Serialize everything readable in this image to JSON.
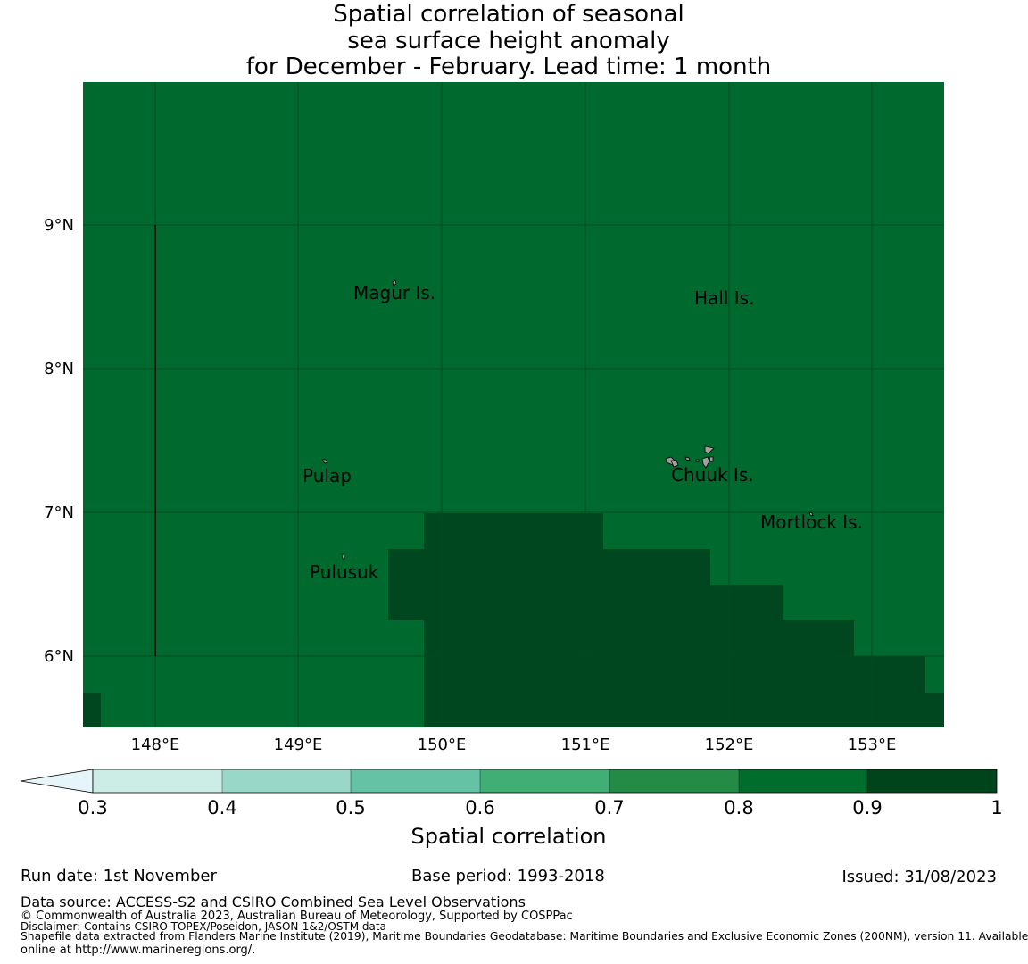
{
  "title": {
    "line1": "Spatial correlation of seasonal",
    "line2": "sea surface height anomaly",
    "line3": "for December - February. Lead time: 1 month"
  },
  "map": {
    "colors": {
      "corr_0_8_0_9": "#006a2e",
      "corr_0_9_1": "#00461f",
      "gridline": "#004a20",
      "island_fill": "#a0a0a0"
    },
    "lat_labels": [
      "9°N",
      "8°N",
      "7°N",
      "6°N"
    ],
    "lon_labels": [
      "148°E",
      "149°E",
      "150°E",
      "151°E",
      "152°E",
      "153°E"
    ],
    "places": [
      {
        "name": "Magur Is."
      },
      {
        "name": "Hall Is."
      },
      {
        "name": "Pulap"
      },
      {
        "name": "Chuuk Is."
      },
      {
        "name": "Mortlock Is."
      },
      {
        "name": "Pulusuk"
      }
    ]
  },
  "colorbar": {
    "label": "Spatial correlation",
    "ticks": [
      "0.3",
      "0.4",
      "0.5",
      "0.6",
      "0.7",
      "0.8",
      "0.9",
      "1"
    ],
    "extend_color": "#e5f5f9",
    "colors": [
      "#ccece6",
      "#99d8c9",
      "#66c2a4",
      "#41ae76",
      "#238b45",
      "#006d2c",
      "#00441b"
    ]
  },
  "footer": {
    "run_date": "Run date: 1st November",
    "base_period": "Base period: 1993-2018",
    "issued": "Issued: 31/08/2023",
    "data_source": "Data source: ACCESS-S2 and CSIRO Combined Sea Level Observations",
    "copyright": "© Commonwealth of Australia 2023, Australian Bureau of Meteorology, Supported by COSPPac",
    "disclaimer": "Disclaimer: Contains CSIRO TOPEX/Poseidon, JASON-1&2/OSTM data",
    "shapefile_line1": "Shapefile data extracted from Flanders Marine Institute (2019), Maritime Boundaries Geodatabase: Maritime Boundaries and Exclusive Economic Zones (200NM), version 11. Available",
    "shapefile_line2": "online at http://www.marineregions.org/."
  }
}
